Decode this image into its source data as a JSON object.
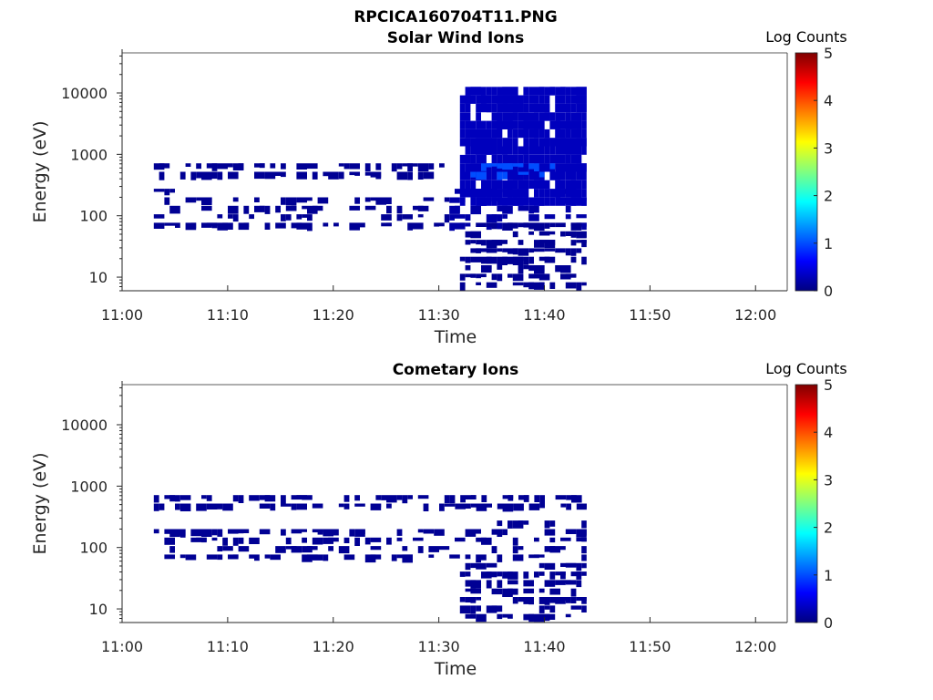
{
  "figure_title": "RPCICA160704T11.PNG",
  "chart_data": [
    {
      "type": "heatmap",
      "title": "Solar Wind Ions",
      "xlabel": "Time",
      "ylabel": "Energy (eV)",
      "x_ticks": [
        "11:00",
        "11:10",
        "11:20",
        "11:30",
        "11:40",
        "11:50",
        "12:00"
      ],
      "xlim": [
        "11:00",
        "12:03"
      ],
      "y_scale": "log",
      "y_ticks": [
        "10",
        "100",
        "1000",
        "10000"
      ],
      "ylim": [
        6,
        45000
      ],
      "colorbar_label": "Log Counts",
      "colorbar_ticks": [
        "0",
        "1",
        "2",
        "3",
        "4",
        "5"
      ],
      "clim": [
        0,
        5
      ],
      "colormap": "jet",
      "background": "#ffffff",
      "regions": [
        {
          "t_start": "11:03",
          "t_end": "11:31",
          "e_min": 500,
          "e_max": 650,
          "log_counts": 0.1,
          "pattern": "intermittent"
        },
        {
          "t_start": "11:03",
          "t_end": "11:31",
          "e_min": 65,
          "e_max": 160,
          "log_counts": 0.1,
          "pattern": "sparse"
        },
        {
          "t_start": "11:03",
          "t_end": "11:05",
          "e_min": 200,
          "e_max": 240,
          "log_counts": 0.1,
          "pattern": "isolated"
        },
        {
          "t_start": "11:31",
          "t_end": "11:44",
          "e_min": 60,
          "e_max": 200,
          "log_counts": 0.2,
          "pattern": "sparse"
        },
        {
          "t_start": "11:32",
          "t_end": "11:44",
          "e_min": 6,
          "e_max": 60,
          "log_counts": 0.1,
          "pattern": "patchy"
        },
        {
          "t_start": "11:32",
          "t_end": "11:44",
          "e_min": 150,
          "e_max": 10500,
          "log_counts": 0.3,
          "pattern": "dense"
        },
        {
          "t_start": "11:33",
          "t_end": "11:41",
          "e_min": 480,
          "e_max": 600,
          "log_counts": 1.0,
          "pattern": "enhanced"
        }
      ]
    },
    {
      "type": "heatmap",
      "title": "Cometary Ions",
      "xlabel": "Time",
      "ylabel": "Energy (eV)",
      "x_ticks": [
        "11:00",
        "11:10",
        "11:20",
        "11:30",
        "11:40",
        "11:50",
        "12:00"
      ],
      "xlim": [
        "11:00",
        "12:03"
      ],
      "y_scale": "log",
      "y_ticks": [
        "10",
        "100",
        "1000",
        "10000"
      ],
      "ylim": [
        6,
        45000
      ],
      "colorbar_label": "Log Counts",
      "colorbar_ticks": [
        "0",
        "1",
        "2",
        "3",
        "4",
        "5"
      ],
      "clim": [
        0,
        5
      ],
      "colormap": "jet",
      "background": "#ffffff",
      "regions": [
        {
          "t_start": "11:03",
          "t_end": "11:44",
          "e_min": 500,
          "e_max": 620,
          "log_counts": 0.1,
          "pattern": "intermittent"
        },
        {
          "t_start": "11:03",
          "t_end": "11:31",
          "e_min": 65,
          "e_max": 160,
          "log_counts": 0.1,
          "pattern": "sparse"
        },
        {
          "t_start": "11:31",
          "t_end": "11:44",
          "e_min": 60,
          "e_max": 220,
          "log_counts": 0.1,
          "pattern": "sparse"
        },
        {
          "t_start": "11:32",
          "t_end": "11:44",
          "e_min": 6,
          "e_max": 45,
          "log_counts": 0.1,
          "pattern": "patchy"
        }
      ]
    }
  ]
}
